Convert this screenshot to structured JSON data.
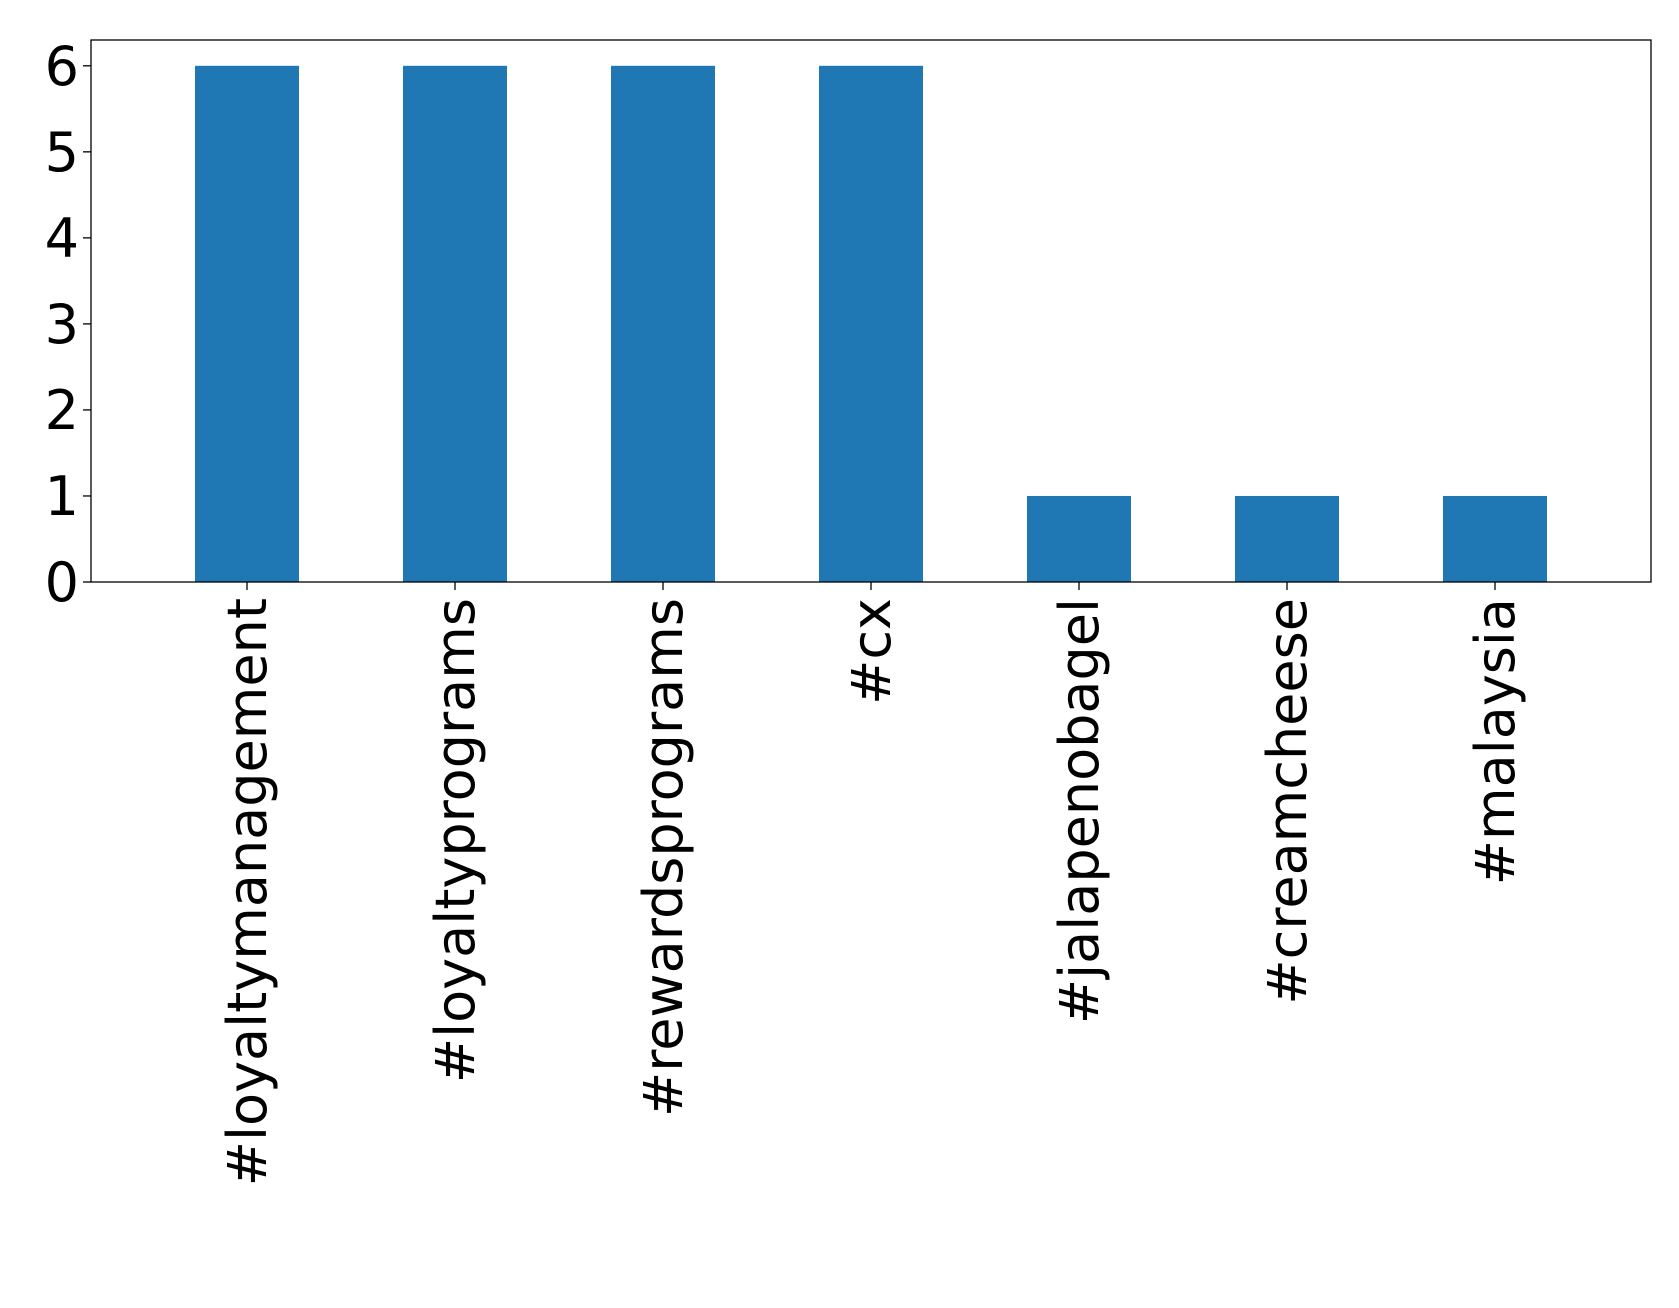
{
  "chart_data": {
    "type": "bar",
    "categories": [
      "#loyaltymanagement",
      "#loyaltyprograms",
      "#rewardsprograms",
      "#cx",
      "#jalapenobagel",
      "#creamcheese",
      "#malaysia"
    ],
    "values": [
      6,
      6,
      6,
      6,
      1,
      1,
      1
    ],
    "title": "",
    "xlabel": "",
    "ylabel": "",
    "ylim": [
      0,
      6.3
    ],
    "yticks": [
      0,
      1,
      2,
      3,
      4,
      5,
      6
    ],
    "grid": false,
    "legend": "none",
    "bar_color": "#1f77b4"
  }
}
